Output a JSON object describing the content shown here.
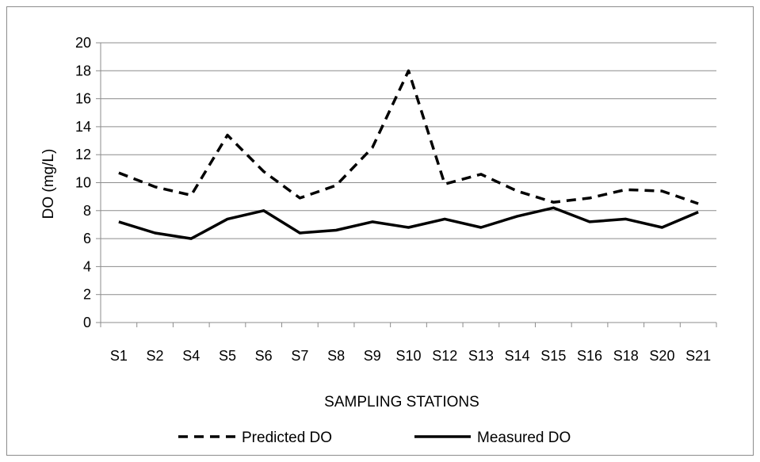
{
  "chart_data": {
    "type": "line",
    "title": "",
    "xlabel": "SAMPLING STATIONS",
    "ylabel": "DO (mg/L)",
    "ylim": [
      0,
      20
    ],
    "yticks": [
      0,
      2,
      4,
      6,
      8,
      10,
      12,
      14,
      16,
      18,
      20
    ],
    "grid": true,
    "legend_position": "bottom",
    "categories": [
      "S1",
      "S2",
      "S4",
      "S5",
      "S6",
      "S7",
      "S8",
      "S9",
      "S10",
      "S12",
      "S13",
      "S14",
      "S15",
      "S16",
      "S18",
      "S20",
      "S21"
    ],
    "series": [
      {
        "name": "Predicted DO",
        "style": "dashed",
        "color": "#000000",
        "values": [
          10.7,
          9.7,
          9.1,
          13.4,
          10.8,
          8.9,
          9.8,
          12.5,
          18.0,
          9.9,
          10.6,
          9.4,
          8.6,
          8.9,
          9.5,
          9.4,
          8.5
        ]
      },
      {
        "name": "Measured DO",
        "style": "solid",
        "color": "#000000",
        "values": [
          7.2,
          6.4,
          6.0,
          7.4,
          8.0,
          6.4,
          6.6,
          7.2,
          6.8,
          7.4,
          6.8,
          7.6,
          8.2,
          7.2,
          7.4,
          6.8,
          7.9
        ]
      }
    ]
  }
}
